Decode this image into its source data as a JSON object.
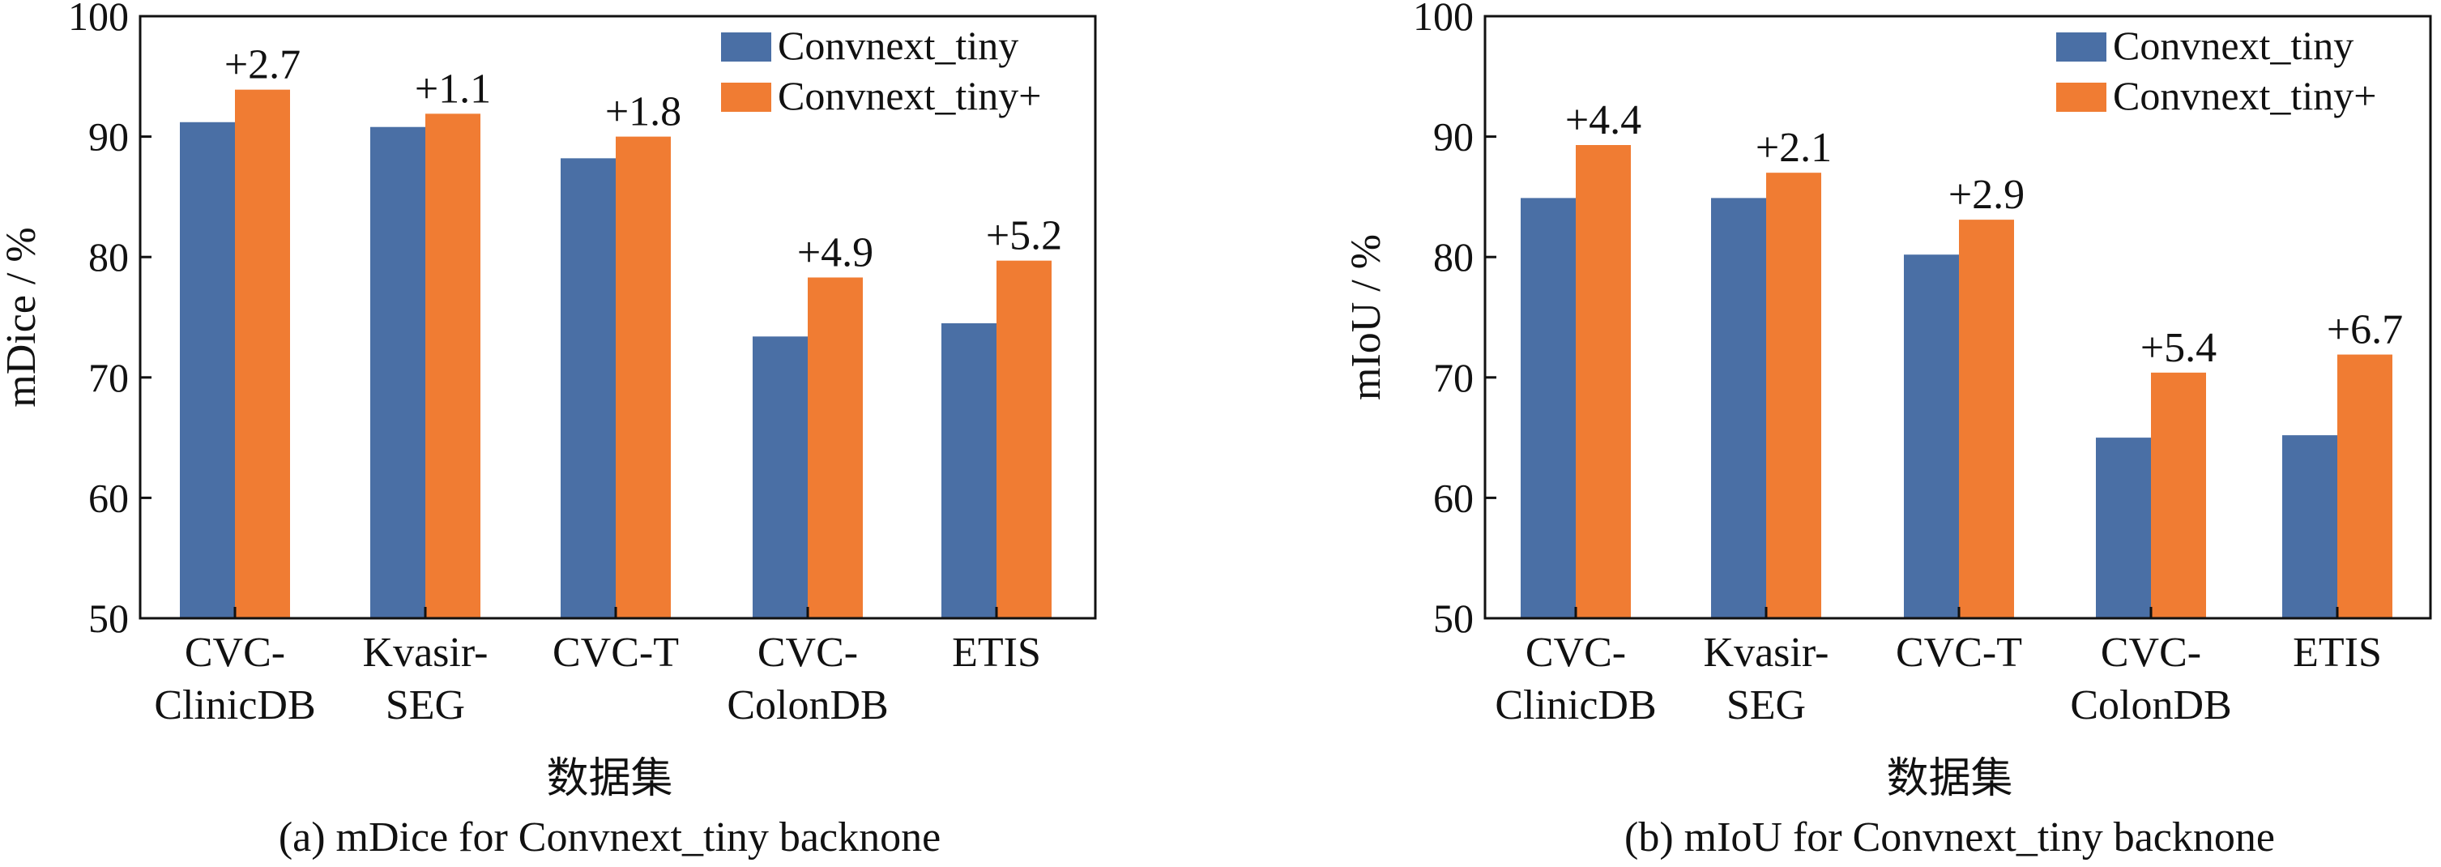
{
  "colors": {
    "convnext_tiny": "#4a6fa5",
    "convnext_tiny_plus": "#f07c33",
    "axis": "#111111",
    "background": "#ffffff"
  },
  "chart_data": [
    {
      "type": "bar",
      "caption": "(a) mDice for Convnext_tiny backnone",
      "xlabel": "数据集",
      "ylabel": "mDice / %",
      "ylim": [
        50,
        100
      ],
      "yticks": [
        50,
        60,
        70,
        80,
        90,
        100
      ],
      "grid": false,
      "legend_position": "top-right",
      "categories": [
        [
          "CVC-",
          "ClinicDB"
        ],
        [
          "Kvasir-",
          "SEG"
        ],
        [
          "CVC-T"
        ],
        [
          "CVC-",
          "ColonDB"
        ],
        [
          "ETIS"
        ]
      ],
      "series": [
        {
          "name": "Convnext_tiny",
          "color_key": "convnext_tiny",
          "values": [
            91.2,
            90.8,
            88.2,
            73.4,
            74.5
          ]
        },
        {
          "name": "Convnext_tiny+",
          "color_key": "convnext_tiny_plus",
          "values": [
            93.9,
            91.9,
            90.0,
            78.3,
            79.7
          ]
        }
      ],
      "annotations": [
        "+2.7",
        "+1.1",
        "+1.8",
        "+4.9",
        "+5.2"
      ]
    },
    {
      "type": "bar",
      "caption": "(b) mIoU for Convnext_tiny backnone",
      "xlabel": "数据集",
      "ylabel": "mIoU / %",
      "ylim": [
        50,
        100
      ],
      "yticks": [
        50,
        60,
        70,
        80,
        90,
        100
      ],
      "grid": false,
      "legend_position": "top-right",
      "categories": [
        [
          "CVC-",
          "ClinicDB"
        ],
        [
          "Kvasir-",
          "SEG"
        ],
        [
          "CVC-T"
        ],
        [
          "CVC-",
          "ColonDB"
        ],
        [
          "ETIS"
        ]
      ],
      "series": [
        {
          "name": "Convnext_tiny",
          "color_key": "convnext_tiny",
          "values": [
            84.9,
            84.9,
            80.2,
            65.0,
            65.2
          ]
        },
        {
          "name": "Convnext_tiny+",
          "color_key": "convnext_tiny_plus",
          "values": [
            89.3,
            87.0,
            83.1,
            70.4,
            71.9
          ]
        }
      ],
      "annotations": [
        "+4.4",
        "+2.1",
        "+2.9",
        "+5.4",
        "+6.7"
      ]
    }
  ]
}
